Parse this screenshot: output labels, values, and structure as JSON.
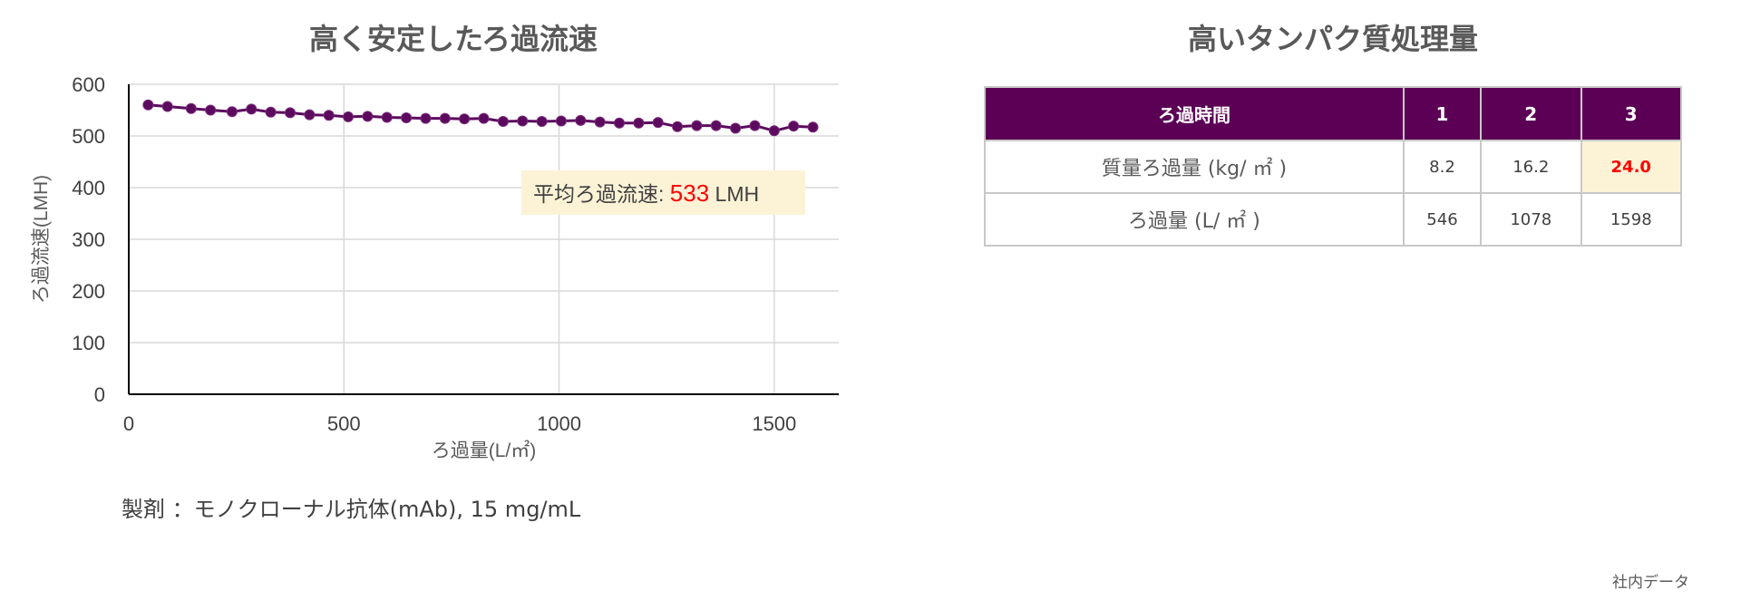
{
  "left_title": "高く安定したろ過流速",
  "right_title": "高いタンパク質処理量",
  "note": "製剤 ：モノクローナル抗体(mAb), 15 mg/mL",
  "source": "社内データ",
  "table": {
    "headers": [
      "ろ過時間",
      "1",
      "2",
      "3"
    ],
    "rows": [
      {
        "label": "質量ろ過量 (kg/ ㎡ )",
        "cells": [
          "8.2",
          "16.2",
          "24.0"
        ]
      },
      {
        "label": "ろ過量 (L/ ㎡ )",
        "cells": [
          "546",
          "1078",
          "1598"
        ]
      }
    ],
    "highlight_color": "#fcf3d7",
    "highlight_text_color": "#ff0000"
  },
  "chart_data": {
    "type": "line",
    "xlabel": "ろ過量(L/㎡)",
    "ylabel": "ろ過流速(LMH)",
    "xlim": [
      0,
      1650
    ],
    "ylim": [
      0,
      600
    ],
    "xticks": [
      0,
      500,
      1000,
      1500
    ],
    "yticks": [
      0,
      100,
      200,
      300,
      400,
      500,
      600
    ],
    "grid": true,
    "series_color": "#5b0a5e",
    "annotation": {
      "label": "平均ろ過流速: ",
      "value": "533",
      "unit": " LMH",
      "value_color": "#ff0000",
      "box_color": "#fcf3d7"
    },
    "x": [
      45,
      90,
      145,
      190,
      240,
      285,
      330,
      375,
      420,
      465,
      510,
      555,
      600,
      645,
      690,
      735,
      780,
      825,
      870,
      915,
      960,
      1005,
      1050,
      1095,
      1140,
      1185,
      1230,
      1275,
      1320,
      1365,
      1410,
      1455,
      1500,
      1545,
      1590
    ],
    "y": [
      560,
      557,
      553,
      550,
      547,
      552,
      546,
      545,
      541,
      540,
      537,
      538,
      536,
      535,
      534,
      534,
      533,
      534,
      528,
      529,
      528,
      529,
      530,
      527,
      525,
      525,
      526,
      518,
      520,
      520,
      515,
      520,
      510,
      519,
      517
    ]
  }
}
